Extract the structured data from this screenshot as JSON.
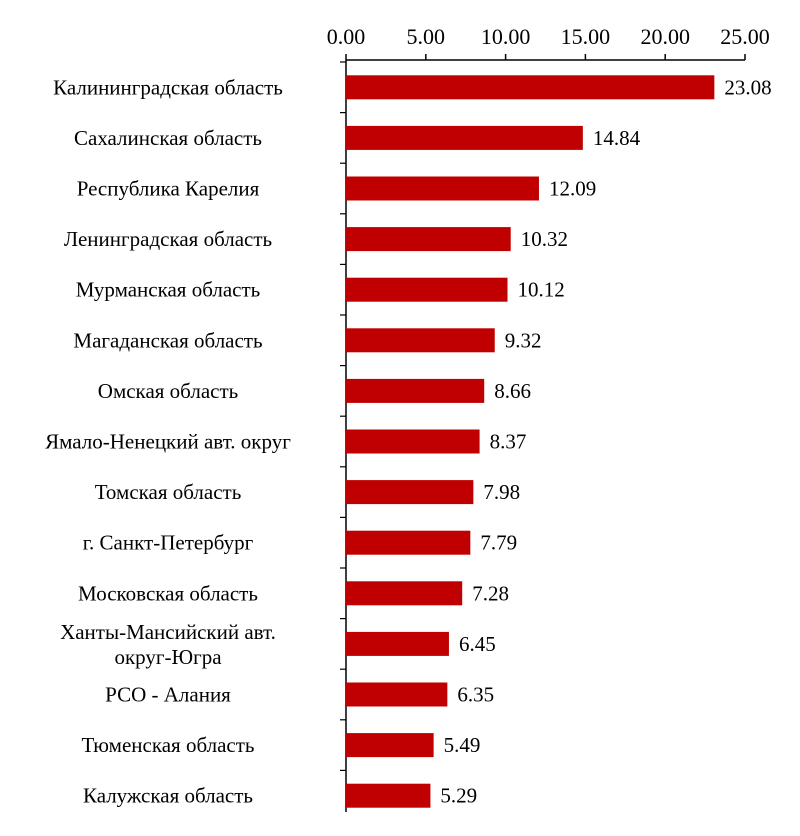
{
  "chart_data": {
    "type": "bar",
    "orientation": "horizontal",
    "title": "",
    "xlabel": "",
    "ylabel": "",
    "xlim": [
      0,
      25
    ],
    "x_ticks": [
      0,
      5,
      10,
      15,
      20,
      25
    ],
    "x_tick_labels": [
      "0.00",
      "5.00",
      "10.00",
      "15.00",
      "20.00",
      "25.00"
    ],
    "x_axis_position": "top",
    "grid": false,
    "legend": "none",
    "bar_color": "#c00000",
    "categories": [
      "Калининградская область",
      "Сахалинская область",
      "Республика Карелия",
      "Ленинградская область",
      "Мурманская область",
      "Магаданская область",
      "Омская область",
      "Ямало-Ненецкий авт. округ",
      "Томская область",
      "г. Санкт-Петербург",
      "Московская область",
      "Ханты-Мансийский авт. округ-Югра",
      "РСО - Алания",
      "Тюменская область",
      "Калужская область"
    ],
    "values": [
      23.08,
      14.84,
      12.09,
      10.32,
      10.12,
      9.32,
      8.66,
      8.37,
      7.98,
      7.79,
      7.28,
      6.45,
      6.35,
      5.49,
      5.29
    ],
    "value_labels": [
      "23.08",
      "14.84",
      "12.09",
      "10.32",
      "10.12",
      "9.32",
      "8.66",
      "8.37",
      "7.98",
      "7.79",
      "7.28",
      "6.45",
      "6.35",
      "5.49",
      "5.29"
    ]
  }
}
